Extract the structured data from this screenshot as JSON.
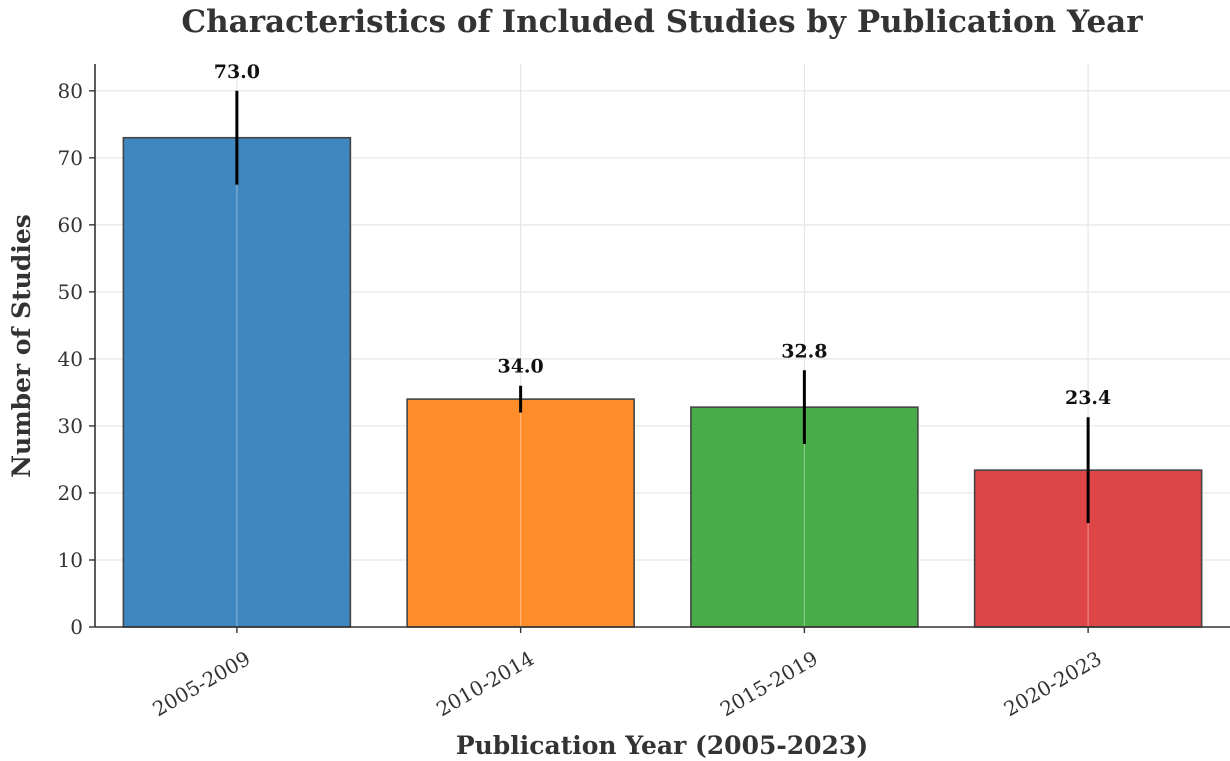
{
  "chart_data": {
    "type": "bar",
    "title": "Characteristics of Included Studies by Publication Year",
    "xlabel": "Publication Year (2005-2023)",
    "ylabel": "Number of Studies",
    "ylim": [
      0,
      84
    ],
    "yticks": [
      0,
      10,
      20,
      30,
      40,
      50,
      60,
      70,
      80
    ],
    "grid": true,
    "categories": [
      "2005-2009",
      "2010-2014",
      "2015-2019",
      "2020-2023"
    ],
    "values": [
      73.0,
      34.0,
      32.8,
      23.4
    ],
    "value_labels": [
      "73.0",
      "34.0",
      "32.8",
      "23.4"
    ],
    "error_low": [
      66.0,
      32.0,
      27.3,
      15.5
    ],
    "error_high": [
      80.0,
      36.0,
      38.3,
      31.3
    ],
    "colors": [
      "#3c85be",
      "#ff8c26",
      "#44aa44",
      "#dc4142"
    ]
  }
}
